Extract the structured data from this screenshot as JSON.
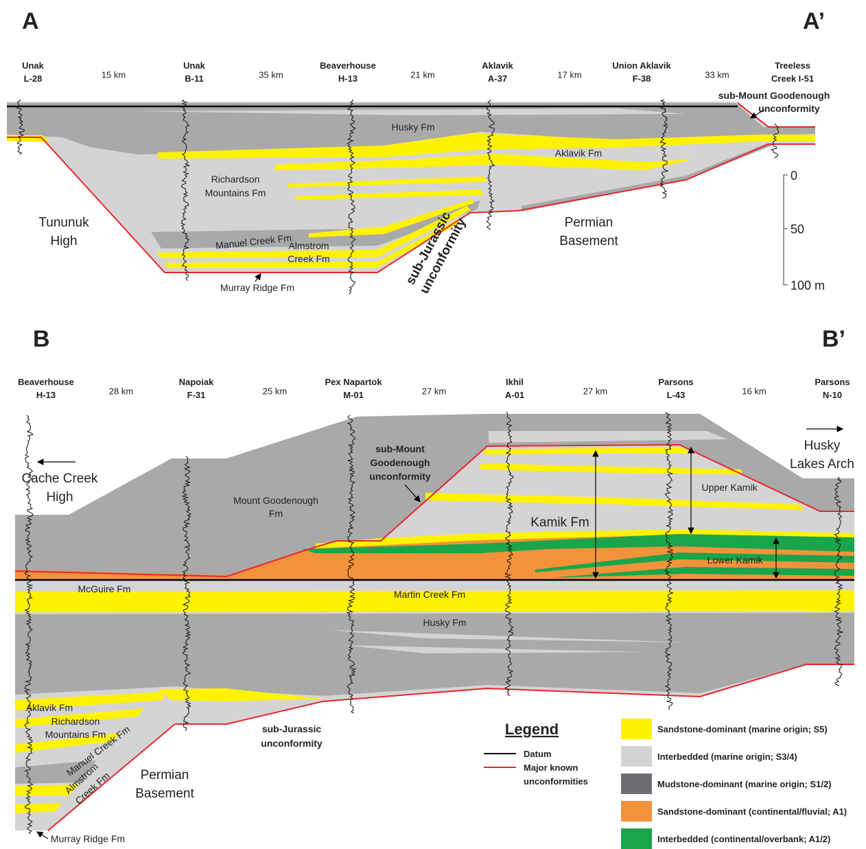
{
  "section_a": {
    "label": "A",
    "end_label": "A’",
    "wells": [
      {
        "name": "Unak",
        "id": "L-28"
      },
      {
        "name": "Unak",
        "id": "B-11"
      },
      {
        "name": "Beaverhouse",
        "id": "H-13"
      },
      {
        "name": "Aklavik",
        "id": "A-37"
      },
      {
        "name": "Union Aklavik",
        "id": "F-38"
      },
      {
        "name": "Treeless",
        "id": "Creek I-51"
      }
    ],
    "distances": [
      "15 km",
      "35 km",
      "21 km",
      "17 km",
      "33 km"
    ],
    "units": {
      "husky": "Husky Fm",
      "aklavik": "Aklavik Fm",
      "richardson": [
        "Richardson",
        "Mountains Fm"
      ],
      "manuel": "Manuel Creek Fm",
      "almstrom": [
        "Almstrom",
        "Creek Fm"
      ],
      "murray": "Murray Ridge Fm"
    },
    "annotations": {
      "sub_mount_goodenough": [
        "sub-Mount Goodenough",
        "unconformity"
      ],
      "tununuk": [
        "Tununuk",
        "High"
      ],
      "sub_jurassic": [
        "sub-Jurassic",
        "unconformity"
      ],
      "permian": [
        "Permian",
        "Basement"
      ]
    },
    "scale": [
      "0",
      "50",
      "100 m"
    ]
  },
  "section_b": {
    "label": "B",
    "end_label": "B’",
    "wells": [
      {
        "name": "Beaverhouse",
        "id": "H-13"
      },
      {
        "name": "Napoiak",
        "id": "F-31"
      },
      {
        "name": "Pex Napartok",
        "id": "M-01"
      },
      {
        "name": "Ikhil",
        "id": "A-01"
      },
      {
        "name": "Parsons",
        "id": "L-43"
      },
      {
        "name": "Parsons",
        "id": "N-10"
      }
    ],
    "distances": [
      "28 km",
      "25 km",
      "27 km",
      "27 km",
      "16 km"
    ],
    "units": {
      "mount_goodenough": [
        "Mount Goodenough",
        "Fm"
      ],
      "kamik": "Kamik Fm",
      "upper_kamik": "Upper Kamik",
      "lower_kamik": "Lower Kamik",
      "mcguire": "McGuire Fm",
      "martin_creek": "Martin Creek Fm",
      "husky": "Husky Fm",
      "aklavik": "Aklavik Fm",
      "richardson": [
        "Richardson",
        "Mountains Fm"
      ],
      "manuel": "Manuel Creek Fm",
      "almstrom": [
        "Almstrom",
        "Creek Fm"
      ],
      "murray": "Murray Ridge Fm"
    },
    "annotations": {
      "cache_creek": [
        "Cache Creek",
        "High"
      ],
      "husky_lakes": [
        "Husky",
        "Lakes Arch"
      ],
      "sub_mount_goodenough": [
        "sub-Mount",
        "Goodenough",
        "unconformity"
      ],
      "sub_jurassic": [
        "sub-Jurassic",
        "unconformity"
      ],
      "permian": [
        "Permian",
        "Basement"
      ]
    }
  },
  "legend": {
    "title": "Legend",
    "lines": [
      {
        "label": [
          "Datum"
        ],
        "color": "#000000"
      },
      {
        "label": [
          "Major known",
          "unconformities"
        ],
        "color": "#e8262b"
      }
    ],
    "items": [
      {
        "label": "Sandstone-dominant (marine origin; S5)",
        "color": "#fff200"
      },
      {
        "label": "Interbedded (marine origin; S3/4)",
        "color": "#d3d3d3"
      },
      {
        "label": "Mudstone-dominant (marine origin; S1/2)",
        "color": "#6d6e71"
      },
      {
        "label": "Sandstone-dominant (continental/fluvial; A1)",
        "color": "#f4923b"
      },
      {
        "label": "Interbedded (continental/overbank; A1/2)",
        "color": "#1aa54b"
      }
    ]
  }
}
